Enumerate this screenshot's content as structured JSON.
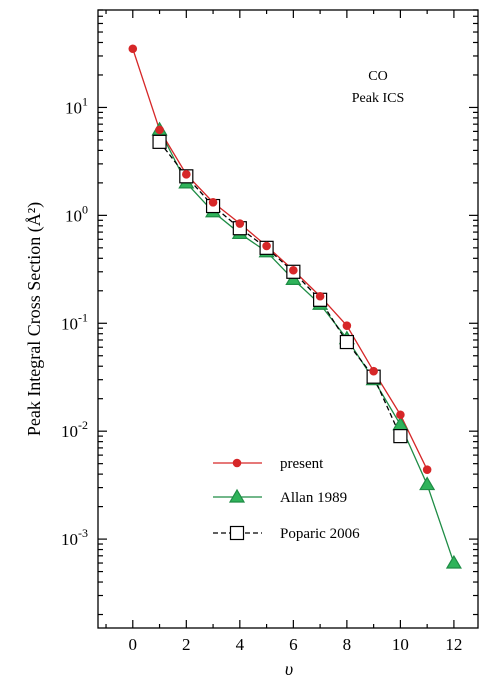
{
  "chart_data": {
    "type": "line",
    "title": "",
    "annotation": [
      "CO",
      "Peak ICS"
    ],
    "xlabel": "υ",
    "ylabel": "Peak Integral Cross Section (Å²)",
    "xlim": [
      -1.3,
      12.9
    ],
    "ylim": [
      0.00015,
      80
    ],
    "yscale": "log",
    "grid": false,
    "legend_position": "lower-left",
    "x_ticks": [
      0,
      2,
      4,
      6,
      8,
      10,
      12
    ],
    "y_ticks": [
      {
        "base": "10",
        "exp": "-3"
      },
      {
        "base": "10",
        "exp": "-2"
      },
      {
        "base": "10",
        "exp": "-1"
      },
      {
        "base": "10",
        "exp": "0"
      },
      {
        "base": "10",
        "exp": "1"
      }
    ],
    "series": [
      {
        "name": "present",
        "color": "#d62728",
        "marker": "circle",
        "line": "solid",
        "x": [
          0,
          1,
          2,
          3,
          4,
          5,
          6,
          7,
          8,
          9,
          10,
          11
        ],
        "y": [
          35,
          6.2,
          2.4,
          1.32,
          0.84,
          0.52,
          0.31,
          0.178,
          0.095,
          0.036,
          0.0142,
          0.0044
        ]
      },
      {
        "name": "Allan 1989",
        "color": "#1e8c45",
        "fill": "#2fb35a",
        "marker": "triangle",
        "line": "solid",
        "x": [
          1,
          2,
          3,
          4,
          5,
          6,
          7,
          8,
          9,
          10,
          11,
          12
        ],
        "y": [
          6.2,
          2.0,
          1.08,
          0.68,
          0.46,
          0.255,
          0.15,
          0.072,
          0.03,
          0.0115,
          0.0032,
          0.0006
        ]
      },
      {
        "name": "Poparic 2006",
        "color": "#000000",
        "marker": "square",
        "line": "dashed",
        "x": [
          1,
          2,
          3,
          4,
          5,
          6,
          7,
          8,
          9,
          10
        ],
        "y": [
          4.8,
          2.3,
          1.22,
          0.76,
          0.5,
          0.3,
          0.165,
          0.067,
          0.032,
          0.009
        ]
      }
    ]
  }
}
